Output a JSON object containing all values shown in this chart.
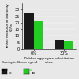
{
  "categories": [
    "0%",
    "30%"
  ],
  "series": [
    {
      "label": "0",
      "values": [
        27,
        7
      ],
      "color": "#1a1a1a"
    },
    {
      "label": "40",
      "values": [
        21,
        6
      ],
      "color": "#22cc22"
    }
  ],
  "ylabel": "Tensile modulus of elasticity\n(GPa)",
  "xlabel": "Rubber aggregate substitution\nrates",
  "legend_title": "Dosing in fibres, kg/m3",
  "ylim": [
    0,
    35
  ],
  "yticks": [
    0,
    5,
    10,
    15,
    20,
    25,
    30
  ],
  "background_color": "#e8e8e8",
  "bar_width": 0.3
}
